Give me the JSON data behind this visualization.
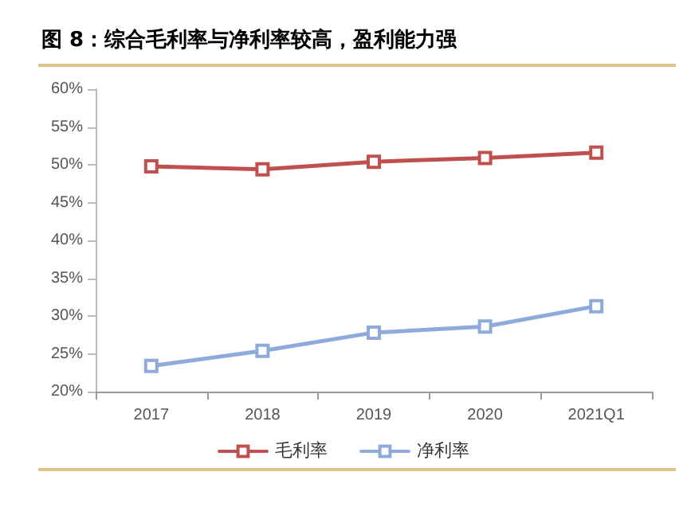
{
  "chart_data": {
    "type": "line",
    "title": "图 8：综合毛利率与净利率较高，盈利能力强",
    "categories": [
      "2017",
      "2018",
      "2019",
      "2020",
      "2021Q1"
    ],
    "series": [
      {
        "name": "毛利率",
        "color": "#c0504d",
        "values": [
          49.8,
          49.4,
          50.4,
          50.9,
          51.6
        ]
      },
      {
        "name": "净利率",
        "color": "#8eaadb",
        "values": [
          23.4,
          25.4,
          27.8,
          28.6,
          31.3
        ]
      }
    ],
    "ylim": [
      20,
      60
    ],
    "yticks": [
      {
        "value": 20,
        "label": "20%"
      },
      {
        "value": 25,
        "label": "25%"
      },
      {
        "value": 30,
        "label": "30%"
      },
      {
        "value": 35,
        "label": "35%"
      },
      {
        "value": 40,
        "label": "40%"
      },
      {
        "value": 45,
        "label": "45%"
      },
      {
        "value": 50,
        "label": "50%"
      },
      {
        "value": 55,
        "label": "55%"
      },
      {
        "value": 60,
        "label": "60%"
      }
    ],
    "grid": false,
    "legend": "bottom",
    "marker": "square",
    "line_style": "solid"
  }
}
